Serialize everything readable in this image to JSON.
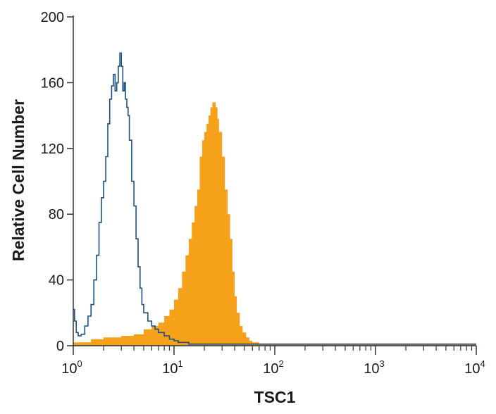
{
  "chart_data": {
    "type": "area",
    "title": "",
    "xlabel": "TSC1",
    "ylabel": "Relative Cell Number",
    "x_scale": "log",
    "xlim": [
      1,
      10000
    ],
    "ylim": [
      0,
      200
    ],
    "x_ticks": [
      {
        "base": "10",
        "exp": "0",
        "value": 1
      },
      {
        "base": "10",
        "exp": "1",
        "value": 10
      },
      {
        "base": "10",
        "exp": "2",
        "value": 100
      },
      {
        "base": "10",
        "exp": "3",
        "value": 1000
      },
      {
        "base": "10",
        "exp": "4",
        "value": 10000
      }
    ],
    "y_ticks": [
      "0",
      "40",
      "80",
      "120",
      "160",
      "200"
    ],
    "grid": false,
    "series": [
      {
        "style": "filled",
        "color": "#f5a11a",
        "x": [
          1.0,
          1.5,
          2.0,
          2.5,
          3.0,
          4.0,
          5.0,
          6.0,
          7.0,
          8.0,
          9.0,
          10.0,
          11.0,
          12.0,
          13.0,
          14.0,
          15.0,
          16.0,
          17.0,
          18.0,
          19.0,
          20.0,
          21.0,
          22.0,
          23.0,
          24.0,
          25.0,
          26.0,
          27.0,
          28.0,
          30.0,
          32.0,
          34.0,
          36.0,
          38.0,
          40.0,
          42.0,
          45.0,
          48.0,
          52.0,
          56.0,
          60.0,
          65.0,
          70.0,
          80.0,
          100.0,
          1000.0,
          10000.0
        ],
        "y": [
          2,
          4,
          5,
          5,
          6,
          7,
          10,
          12,
          14,
          18,
          22,
          28,
          35,
          45,
          55,
          65,
          75,
          85,
          95,
          115,
          125,
          130,
          135,
          140,
          145,
          148,
          148,
          145,
          138,
          130,
          115,
          95,
          80,
          65,
          45,
          30,
          20,
          12,
          8,
          5,
          3,
          2,
          2,
          1,
          1,
          1,
          1,
          1
        ]
      },
      {
        "style": "outline",
        "color": "#1a4f86",
        "x": [
          1.0,
          1.03,
          1.07,
          1.12,
          1.2,
          1.3,
          1.4,
          1.5,
          1.6,
          1.7,
          1.8,
          1.9,
          2.0,
          2.1,
          2.2,
          2.3,
          2.4,
          2.5,
          2.6,
          2.7,
          2.8,
          2.9,
          3.0,
          3.1,
          3.2,
          3.3,
          3.4,
          3.5,
          3.6,
          3.8,
          4.0,
          4.2,
          4.4,
          4.6,
          4.8,
          5.0,
          5.5,
          6.0,
          6.5,
          7.0,
          8.0,
          9.0,
          10.0,
          11.0,
          12.0,
          14.0,
          20.0,
          100.0,
          1000.0,
          10000.0
        ],
        "y": [
          22,
          15,
          8,
          6,
          7,
          12,
          18,
          25,
          40,
          55,
          75,
          90,
          100,
          115,
          135,
          150,
          158,
          165,
          155,
          160,
          170,
          178,
          170,
          155,
          160,
          150,
          145,
          140,
          125,
          100,
          85,
          65,
          48,
          35,
          25,
          20,
          15,
          12,
          10,
          8,
          6,
          4,
          3,
          2,
          2,
          1,
          1,
          1,
          1,
          1
        ]
      }
    ]
  }
}
